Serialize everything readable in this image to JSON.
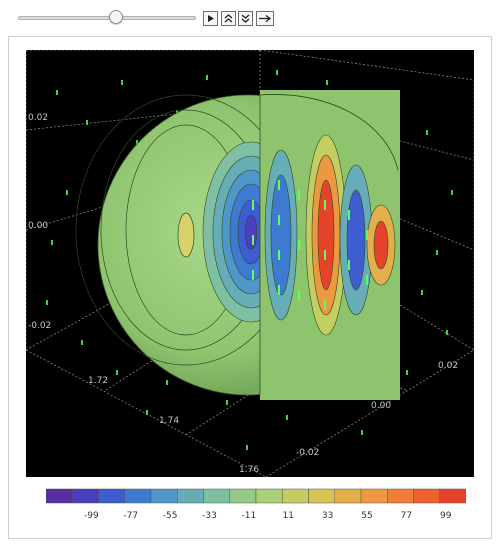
{
  "controls": {
    "slider_value": 0.55,
    "buttons": [
      {
        "name": "play-button",
        "icon": "play-icon"
      },
      {
        "name": "faster-button",
        "icon": "double-chevron-up-icon"
      },
      {
        "name": "slower-button",
        "icon": "double-chevron-down-icon"
      },
      {
        "name": "direction-button",
        "icon": "right-arrow-icon"
      }
    ]
  },
  "plot": {
    "axis_ticks": {
      "left_z": [
        "0.02",
        "0.00",
        "-0.02"
      ],
      "bottom_x": [
        "1.72",
        "1.74",
        "1.76"
      ],
      "right_y": [
        "0.02",
        "0.00",
        "-0.02"
      ]
    }
  },
  "legend": {
    "labels": [
      "-99",
      "-77",
      "-55",
      "-33",
      "-11",
      "11",
      "33",
      "55",
      "77",
      "99"
    ],
    "colors": [
      "#5a2fa0",
      "#4b3fbf",
      "#3d5dd0",
      "#3e7ad0",
      "#4f97c8",
      "#66adb7",
      "#7fc0a5",
      "#95c98a",
      "#abcf77",
      "#c4cd62",
      "#d7c454",
      "#e3af4a",
      "#eb9840",
      "#ef7e38",
      "#ee6030",
      "#e5432a"
    ]
  }
}
